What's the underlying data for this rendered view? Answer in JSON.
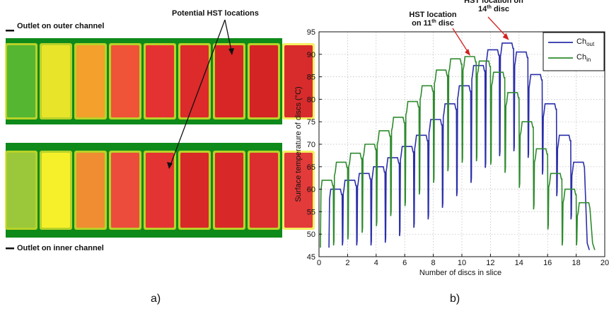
{
  "panel_a": {
    "caption": "a)",
    "top_label": "Outlet on outer channel",
    "bottom_label": "Outlet on inner channel",
    "annotation": "Potential HST locations",
    "top_strip_colors": [
      "#55b632",
      "#e8e42a",
      "#f3a02c",
      "#ef5338",
      "#e43232",
      "#dd2a2a",
      "#d82626",
      "#d42424",
      "#d82c2c"
    ],
    "bottom_strip_colors": [
      "#9ac83a",
      "#f6f02a",
      "#f08d32",
      "#ec4c3b",
      "#e33333",
      "#d92828",
      "#d82828",
      "#dc2e2e",
      "#e33a3a"
    ]
  },
  "chart_data": {
    "type": "line",
    "caption": "b)",
    "title": "",
    "xlabel": "Number of discs in slice",
    "ylabel": "Surface temperature of discs (°C)",
    "xlim": [
      0,
      20
    ],
    "ylim": [
      45,
      95
    ],
    "xticks": [
      0,
      2,
      4,
      6,
      8,
      10,
      12,
      14,
      16,
      18,
      20
    ],
    "yticks": [
      45,
      50,
      55,
      60,
      65,
      70,
      75,
      80,
      85,
      90,
      95
    ],
    "grid": true,
    "legend_position": "top-right",
    "series": [
      {
        "name": "Ch_out",
        "legend_main": "Ch",
        "legend_sub": "out",
        "color": "#2b2fa8",
        "plateaus": [
          60,
          62,
          63.5,
          65,
          67,
          69.5,
          72,
          75.5,
          79,
          83,
          87.5,
          91,
          92.5,
          90.5,
          85.5,
          79,
          72,
          66
        ]
      },
      {
        "name": "Ch_in",
        "legend_main": "Ch",
        "legend_sub": "in",
        "color": "#2e8b2e",
        "plateaus": [
          62,
          66,
          68,
          70,
          73,
          76,
          79.5,
          83,
          86.5,
          89,
          89.5,
          88.5,
          86,
          81.5,
          75,
          69,
          63.5,
          60,
          57
        ]
      }
    ],
    "annotations": [
      {
        "pre": "HST location",
        "mid": "on 11",
        "sup": "th",
        "post": " disc",
        "x": 10.6,
        "y": 89.5
      },
      {
        "pre": "HST location on",
        "mid": "14",
        "sup": "th",
        "post": " disc",
        "x": 13.3,
        "y": 93
      }
    ]
  }
}
